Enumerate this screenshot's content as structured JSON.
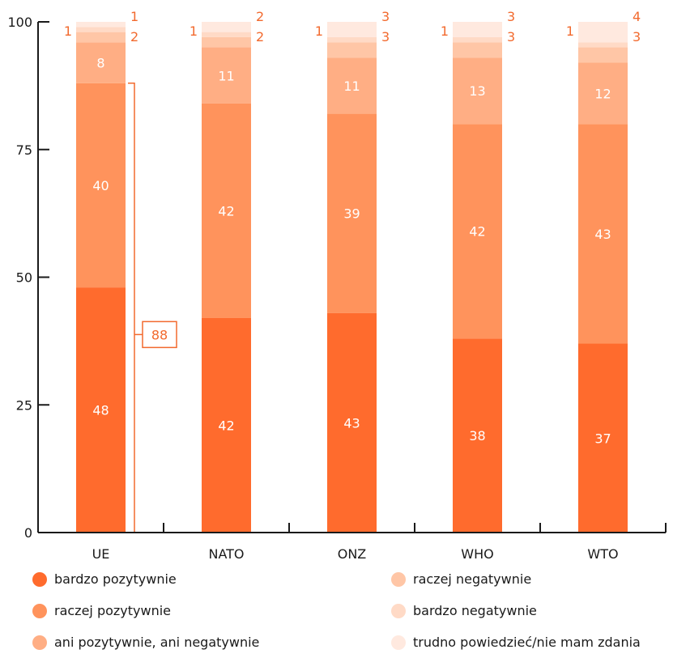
{
  "chart_data": {
    "type": "bar",
    "stacked": true,
    "categories": [
      "UE",
      "NATO",
      "ONZ",
      "WHO",
      "WTO"
    ],
    "ylim": [
      0,
      100
    ],
    "yticks": [
      0,
      25,
      50,
      75,
      100
    ],
    "series": [
      {
        "name": "bardzo pozytywnie",
        "color": "#ff6b2d",
        "values": [
          48,
          42,
          43,
          38,
          37
        ]
      },
      {
        "name": "raczej pozytywnie",
        "color": "#ff935c",
        "values": [
          40,
          42,
          39,
          42,
          43
        ]
      },
      {
        "name": "ani pozytywnie, ani negatywnie",
        "color": "#ffae84",
        "values": [
          8,
          11,
          11,
          13,
          12
        ]
      },
      {
        "name": "raczej negatywnie",
        "color": "#ffc6a6",
        "values": [
          2,
          2,
          3,
          3,
          3
        ]
      },
      {
        "name": "bardzo negatywnie",
        "color": "#ffdac6",
        "values": [
          1,
          1,
          1,
          1,
          1
        ]
      },
      {
        "name": "trudno powiedzieć/nie mam zdania",
        "color": "#ffe9df",
        "values": [
          1,
          2,
          3,
          3,
          4
        ]
      }
    ],
    "annotation": {
      "category": "UE",
      "value": 88,
      "label": "88"
    }
  }
}
